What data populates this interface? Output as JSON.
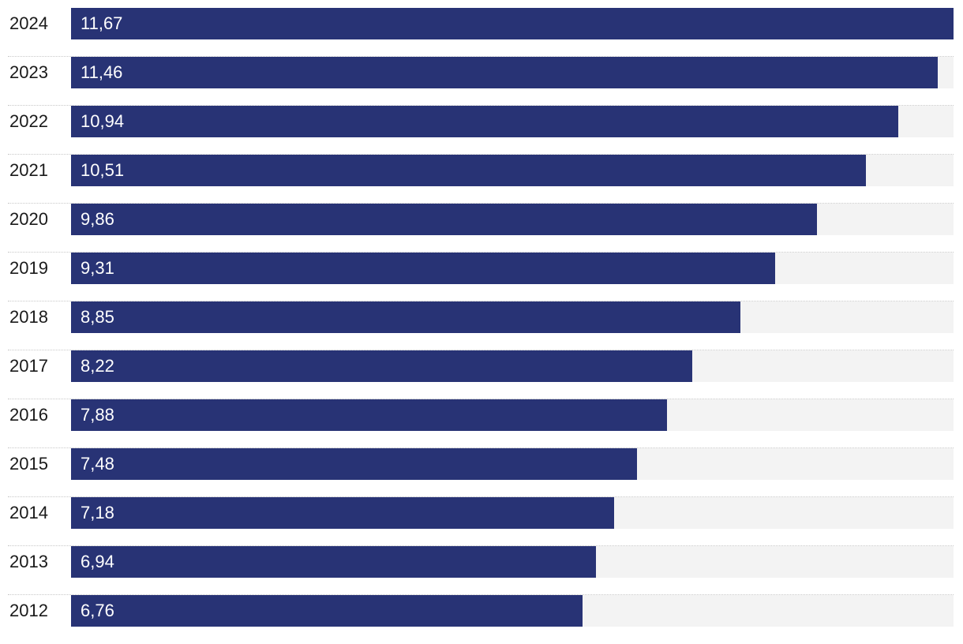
{
  "chart_data": {
    "type": "bar",
    "orientation": "horizontal",
    "categories": [
      "2024",
      "2023",
      "2022",
      "2021",
      "2020",
      "2019",
      "2018",
      "2017",
      "2016",
      "2015",
      "2014",
      "2013",
      "2012"
    ],
    "values": [
      11.67,
      11.46,
      10.94,
      10.51,
      9.86,
      9.31,
      8.85,
      8.22,
      7.88,
      7.48,
      7.18,
      6.94,
      6.76
    ],
    "value_labels": [
      "11,67",
      "11,46",
      "10,94",
      "10,51",
      "9,86",
      "9,31",
      "8,85",
      "8,22",
      "7,88",
      "7,48",
      "7,18",
      "6,94",
      "6,76"
    ],
    "title": "",
    "xlabel": "",
    "ylabel": "",
    "xlim": [
      0,
      11.67
    ],
    "grid": false,
    "legend": "none",
    "colors": {
      "bar": "#283375",
      "track": "#f3f3f3",
      "divider": "#c8c8c8"
    }
  }
}
